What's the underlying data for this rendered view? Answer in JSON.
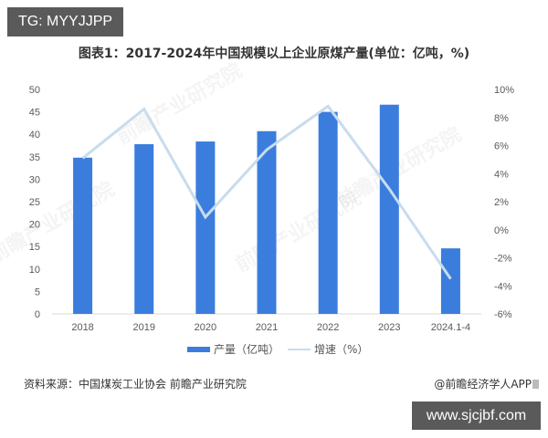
{
  "badges": {
    "top_left": "TG: MYYJJPP",
    "bottom_right": "www.sjcjbf.com"
  },
  "title": "图表1：2017-2024年中国规模以上企业原煤产量(单位：亿吨，%)",
  "legend": {
    "bar_label": "产量（亿吨）",
    "line_label": "增速（%）"
  },
  "footer": {
    "source": "资料来源：中国煤炭工业协会 前瞻产业研究院",
    "credit": "@前瞻经济学人APP"
  },
  "watermark": "前瞻产业研究院",
  "colors": {
    "bar": "#3b7ddd",
    "line": "#c8dcee",
    "axis": "#d9d9d9",
    "tick_text": "#595959"
  },
  "chart_data": {
    "type": "bar+line",
    "title": "图表1：2017-2024年中国规模以上企业原煤产量(单位：亿吨，%)",
    "categories": [
      "2018",
      "2019",
      "2020",
      "2021",
      "2022",
      "2023",
      "2024.1-4"
    ],
    "series": [
      {
        "name": "产量（亿吨）",
        "type": "bar",
        "axis": "left",
        "values": [
          34.8,
          37.8,
          38.4,
          40.7,
          45.0,
          46.6,
          14.6
        ]
      },
      {
        "name": "增速（%）",
        "type": "line",
        "axis": "right",
        "values": [
          5.1,
          8.6,
          0.9,
          5.7,
          8.8,
          2.9,
          -3.5
        ]
      }
    ],
    "left_axis": {
      "ylim": [
        0,
        50
      ],
      "ticks": [
        "0",
        "5",
        "10",
        "15",
        "20",
        "25",
        "30",
        "35",
        "40",
        "45",
        "50"
      ]
    },
    "right_axis": {
      "ylim": [
        -6,
        10
      ],
      "ticks": [
        "-6%",
        "-4%",
        "-2%",
        "0%",
        "2%",
        "4%",
        "6%",
        "8%",
        "10%"
      ]
    },
    "xlabel": "",
    "ylabel": "",
    "grid": false,
    "legend_position": "bottom"
  }
}
